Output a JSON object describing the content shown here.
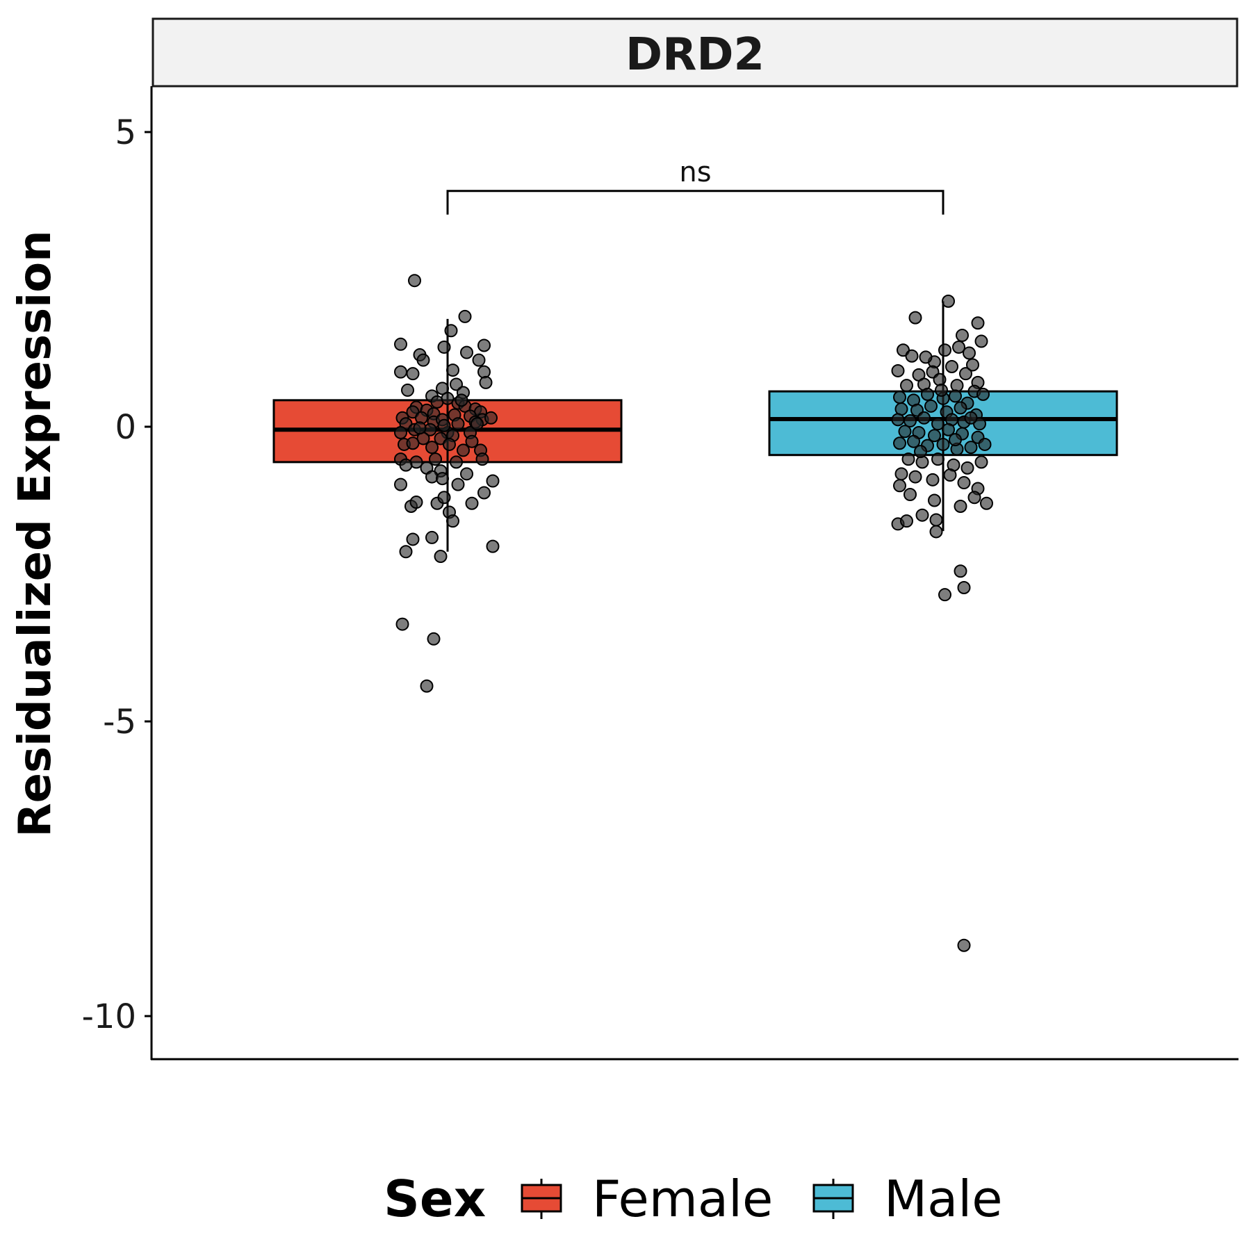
{
  "chart_data": {
    "type": "box",
    "title": "DRD2",
    "xlabel": "",
    "ylabel": "Residualized Expression",
    "ylim": [
      -10.7,
      5.8
    ],
    "yticks": [
      5,
      0,
      -5,
      -10
    ],
    "ytick_labels": [
      "5",
      "0",
      "-5",
      "-10"
    ],
    "grid": false,
    "legend": {
      "title": "Sex",
      "position": "bottom"
    },
    "significance": {
      "label": "ns",
      "from": "Female",
      "to": "Male",
      "y": 4.0
    },
    "series": [
      {
        "name": "Female",
        "color": "#E64B35",
        "q1": -0.6,
        "median": -0.05,
        "q3": 0.45,
        "whisker_low": -2.12,
        "whisker_high": 1.83,
        "points": [
          [
            -0.19,
            2.48
          ],
          [
            0.1,
            1.87
          ],
          [
            0.02,
            1.63
          ],
          [
            -0.27,
            1.4
          ],
          [
            -0.16,
            1.22
          ],
          [
            0.11,
            1.26
          ],
          [
            -0.02,
            1.35
          ],
          [
            -0.27,
            0.93
          ],
          [
            -0.2,
            0.9
          ],
          [
            0.03,
            0.96
          ],
          [
            0.21,
            1.38
          ],
          [
            0.18,
            1.13
          ],
          [
            0.21,
            0.93
          ],
          [
            -0.14,
            1.13
          ],
          [
            0.22,
            0.75
          ],
          [
            0.05,
            0.72
          ],
          [
            -0.23,
            0.62
          ],
          [
            -0.09,
            0.52
          ],
          [
            -0.03,
            0.65
          ],
          [
            0.09,
            0.58
          ],
          [
            -0.06,
            0.42
          ],
          [
            0.0,
            0.48
          ],
          [
            -0.18,
            0.33
          ],
          [
            -0.12,
            0.28
          ],
          [
            0.06,
            0.4
          ],
          [
            0.1,
            0.35
          ],
          [
            -0.2,
            0.25
          ],
          [
            -0.08,
            0.22
          ],
          [
            0.16,
            0.3
          ],
          [
            0.19,
            0.25
          ],
          [
            0.04,
            0.2
          ],
          [
            -0.26,
            0.15
          ],
          [
            -0.15,
            0.15
          ],
          [
            0.13,
            0.18
          ],
          [
            0.2,
            0.12
          ],
          [
            -0.24,
            0.05
          ],
          [
            -0.08,
            0.08
          ],
          [
            -0.03,
            0.12
          ],
          [
            0.06,
            0.05
          ],
          [
            0.16,
            0.08
          ],
          [
            -0.27,
            -0.1
          ],
          [
            -0.19,
            -0.05
          ],
          [
            -0.1,
            -0.05
          ],
          [
            0.0,
            -0.1
          ],
          [
            0.13,
            -0.1
          ],
          [
            0.17,
            0.05
          ],
          [
            -0.14,
            -0.2
          ],
          [
            -0.04,
            -0.2
          ],
          [
            0.03,
            -0.15
          ],
          [
            0.14,
            -0.25
          ],
          [
            -0.25,
            -0.3
          ],
          [
            -0.2,
            -0.28
          ],
          [
            -0.09,
            -0.35
          ],
          [
            0.01,
            -0.3
          ],
          [
            0.09,
            -0.4
          ],
          [
            0.19,
            -0.4
          ],
          [
            -0.27,
            -0.55
          ],
          [
            -0.18,
            -0.6
          ],
          [
            -0.07,
            -0.55
          ],
          [
            0.05,
            -0.6
          ],
          [
            0.2,
            -0.55
          ],
          [
            -0.24,
            -0.65
          ],
          [
            -0.12,
            -0.7
          ],
          [
            -0.04,
            -0.75
          ],
          [
            0.11,
            -0.8
          ],
          [
            -0.27,
            -0.98
          ],
          [
            -0.21,
            -1.35
          ],
          [
            -0.18,
            -1.28
          ],
          [
            -0.09,
            -0.85
          ],
          [
            -0.03,
            -0.88
          ],
          [
            0.06,
            -0.98
          ],
          [
            0.14,
            -1.3
          ],
          [
            -0.06,
            -1.3
          ],
          [
            -0.02,
            -1.2
          ],
          [
            0.01,
            -1.45
          ],
          [
            0.21,
            -1.12
          ],
          [
            0.26,
            -0.92
          ],
          [
            0.03,
            -1.6
          ],
          [
            -0.09,
            -1.88
          ],
          [
            -0.2,
            -1.91
          ],
          [
            -0.24,
            -2.12
          ],
          [
            -0.04,
            -2.2
          ],
          [
            0.26,
            -2.03
          ],
          [
            -0.26,
            -3.35
          ],
          [
            -0.08,
            -3.6
          ],
          [
            -0.12,
            -4.4
          ],
          [
            0.25,
            0.15
          ],
          [
            -0.16,
            -0.02
          ],
          [
            0.08,
            0.45
          ],
          [
            -0.02,
            0.02
          ]
        ]
      },
      {
        "name": "Male",
        "color": "#4DBBD5",
        "q1": -0.48,
        "median": 0.13,
        "q3": 0.6,
        "whisker_low": -1.77,
        "whisker_high": 2.13,
        "points": [
          [
            0.03,
            2.13
          ],
          [
            -0.16,
            1.85
          ],
          [
            0.2,
            1.76
          ],
          [
            0.11,
            1.55
          ],
          [
            -0.23,
            1.3
          ],
          [
            -0.18,
            1.2
          ],
          [
            -0.05,
            1.1
          ],
          [
            0.01,
            1.3
          ],
          [
            0.09,
            1.35
          ],
          [
            0.15,
            1.25
          ],
          [
            0.22,
            1.45
          ],
          [
            -0.26,
            0.95
          ],
          [
            -0.14,
            0.88
          ],
          [
            -0.06,
            0.93
          ],
          [
            0.05,
            1.02
          ],
          [
            0.13,
            0.9
          ],
          [
            0.2,
            0.75
          ],
          [
            -0.21,
            0.7
          ],
          [
            -0.11,
            0.72
          ],
          [
            -0.02,
            0.8
          ],
          [
            0.08,
            0.7
          ],
          [
            0.18,
            0.6
          ],
          [
            -0.25,
            0.5
          ],
          [
            -0.17,
            0.45
          ],
          [
            -0.09,
            0.55
          ],
          [
            0.0,
            0.48
          ],
          [
            0.07,
            0.52
          ],
          [
            0.14,
            0.4
          ],
          [
            0.23,
            0.55
          ],
          [
            -0.24,
            0.3
          ],
          [
            -0.15,
            0.28
          ],
          [
            -0.07,
            0.35
          ],
          [
            0.02,
            0.25
          ],
          [
            0.1,
            0.32
          ],
          [
            0.19,
            0.2
          ],
          [
            -0.26,
            0.12
          ],
          [
            -0.19,
            0.1
          ],
          [
            -0.11,
            0.15
          ],
          [
            -0.03,
            0.05
          ],
          [
            0.05,
            0.12
          ],
          [
            0.12,
            0.08
          ],
          [
            0.21,
            0.05
          ],
          [
            -0.22,
            -0.08
          ],
          [
            -0.14,
            -0.1
          ],
          [
            -0.05,
            -0.15
          ],
          [
            0.03,
            -0.05
          ],
          [
            0.11,
            -0.12
          ],
          [
            0.2,
            -0.18
          ],
          [
            -0.25,
            -0.28
          ],
          [
            -0.17,
            -0.25
          ],
          [
            -0.09,
            -0.32
          ],
          [
            0.0,
            -0.3
          ],
          [
            0.08,
            -0.38
          ],
          [
            0.16,
            -0.35
          ],
          [
            0.24,
            -0.3
          ],
          [
            -0.2,
            -0.55
          ],
          [
            -0.12,
            -0.6
          ],
          [
            -0.03,
            -0.55
          ],
          [
            0.06,
            -0.65
          ],
          [
            0.14,
            -0.7
          ],
          [
            0.22,
            -0.6
          ],
          [
            -0.24,
            -0.8
          ],
          [
            -0.16,
            -0.85
          ],
          [
            -0.06,
            -0.9
          ],
          [
            0.04,
            -0.82
          ],
          [
            0.12,
            -0.95
          ],
          [
            0.2,
            -1.05
          ],
          [
            -0.25,
            -1.0
          ],
          [
            -0.19,
            -1.15
          ],
          [
            -0.12,
            -1.5
          ],
          [
            -0.05,
            -1.25
          ],
          [
            0.1,
            -1.35
          ],
          [
            0.18,
            -1.2
          ],
          [
            0.25,
            -1.3
          ],
          [
            -0.26,
            -1.65
          ],
          [
            -0.21,
            -1.6
          ],
          [
            -0.04,
            -1.58
          ],
          [
            -0.04,
            -1.78
          ],
          [
            0.1,
            -2.45
          ],
          [
            0.12,
            -2.73
          ],
          [
            0.01,
            -2.85
          ],
          [
            0.12,
            -8.8
          ],
          [
            -0.1,
            1.18
          ],
          [
            0.17,
            1.05
          ],
          [
            -0.01,
            0.62
          ],
          [
            0.16,
            0.15
          ],
          [
            -0.13,
            -0.42
          ],
          [
            0.07,
            -0.22
          ]
        ]
      }
    ]
  }
}
